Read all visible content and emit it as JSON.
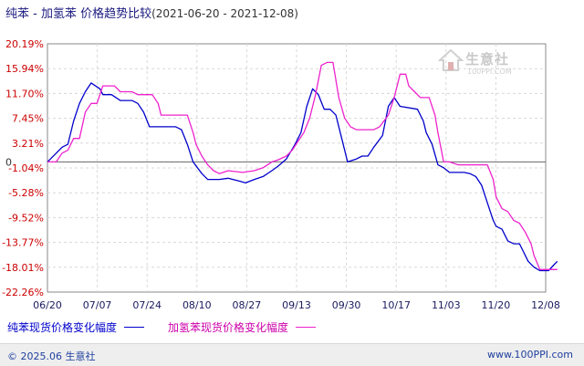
{
  "chart_data": {
    "type": "line",
    "title": "纯苯 - 加氢苯 价格趋势比较",
    "subtitle": "(2021-06-20 - 2021-12-08)",
    "x_ticks": [
      "06/20",
      "07/07",
      "07/24",
      "08/10",
      "08/27",
      "09/13",
      "09/30",
      "10/17",
      "11/03",
      "11/20",
      "12/08"
    ],
    "x_range": [
      "06/20",
      "12/08"
    ],
    "y_ticks": [
      "20.19%",
      "15.94%",
      "11.70%",
      "7.45%",
      "3.21%",
      "-1.04%",
      "-5.28%",
      "-9.52%",
      "-13.77%",
      "-18.01%",
      "-22.26%"
    ],
    "y_zero_label": "0",
    "ylim": [
      -22.26,
      20.19
    ],
    "grid": true,
    "legend_position": "bottom",
    "series": [
      {
        "name": "纯苯现货价格变化幅度",
        "color": "#0000cc",
        "points": [
          [
            0,
            0
          ],
          [
            3,
            1.5
          ],
          [
            5,
            2.5
          ],
          [
            7,
            3
          ],
          [
            9,
            7
          ],
          [
            11,
            10
          ],
          [
            13,
            12
          ],
          [
            15,
            13.5
          ],
          [
            18,
            12.5
          ],
          [
            19,
            11.5
          ],
          [
            22,
            11.5
          ],
          [
            25,
            10.5
          ],
          [
            29,
            10.5
          ],
          [
            31,
            10
          ],
          [
            33,
            8.5
          ],
          [
            35,
            6
          ],
          [
            44,
            6
          ],
          [
            46,
            5.5
          ],
          [
            48,
            3
          ],
          [
            50,
            0
          ],
          [
            53,
            -2
          ],
          [
            55,
            -3
          ],
          [
            59,
            -3
          ],
          [
            62,
            -2.8
          ],
          [
            66,
            -3.3
          ],
          [
            68,
            -3.6
          ],
          [
            71,
            -3
          ],
          [
            74,
            -2.5
          ],
          [
            77,
            -1.5
          ],
          [
            79,
            -0.8
          ],
          [
            82,
            0.5
          ],
          [
            85,
            3
          ],
          [
            87,
            5
          ],
          [
            89,
            9.5
          ],
          [
            91,
            12.5
          ],
          [
            93,
            11.5
          ],
          [
            95,
            9
          ],
          [
            97,
            9
          ],
          [
            99,
            8
          ],
          [
            101,
            4
          ],
          [
            103,
            0
          ],
          [
            106,
            0.5
          ],
          [
            108,
            1
          ],
          [
            110,
            1
          ],
          [
            112,
            2.5
          ],
          [
            115,
            4.5
          ],
          [
            117,
            9.5
          ],
          [
            119,
            11
          ],
          [
            121,
            9.5
          ],
          [
            127,
            9
          ],
          [
            129,
            7
          ],
          [
            130,
            5
          ],
          [
            132,
            3
          ],
          [
            134,
            -0.5
          ],
          [
            136,
            -1
          ],
          [
            138,
            -1.8
          ],
          [
            143,
            -1.8
          ],
          [
            145,
            -2
          ],
          [
            147,
            -2.5
          ],
          [
            149,
            -4
          ],
          [
            151,
            -7
          ],
          [
            153,
            -10
          ],
          [
            154,
            -11
          ],
          [
            156,
            -11.5
          ],
          [
            158,
            -13.5
          ],
          [
            160,
            -14
          ],
          [
            162,
            -14
          ],
          [
            163,
            -15
          ],
          [
            165,
            -17
          ],
          [
            167,
            -18
          ],
          [
            169,
            -18.6
          ],
          [
            172,
            -18.6
          ],
          [
            174,
            -17.5
          ],
          [
            175,
            -17
          ]
        ]
      },
      {
        "name": "加氢苯现货价格变化幅度",
        "color": "#ee22cc",
        "points": [
          [
            0,
            0
          ],
          [
            3,
            0
          ],
          [
            5,
            1.5
          ],
          [
            7,
            2
          ],
          [
            9,
            4
          ],
          [
            11,
            4
          ],
          [
            13,
            8.5
          ],
          [
            15,
            10
          ],
          [
            17,
            10
          ],
          [
            19,
            13
          ],
          [
            23,
            13
          ],
          [
            25,
            12
          ],
          [
            29,
            12
          ],
          [
            31,
            11.5
          ],
          [
            36,
            11.5
          ],
          [
            38,
            10
          ],
          [
            39,
            8
          ],
          [
            48,
            8
          ],
          [
            50,
            5
          ],
          [
            51,
            3
          ],
          [
            53,
            1
          ],
          [
            55,
            -0.5
          ],
          [
            57,
            -1.5
          ],
          [
            59,
            -2
          ],
          [
            62,
            -1.5
          ],
          [
            67,
            -1.8
          ],
          [
            71,
            -1.5
          ],
          [
            74,
            -1
          ],
          [
            77,
            0
          ],
          [
            79,
            0.3
          ],
          [
            82,
            1
          ],
          [
            84,
            2
          ],
          [
            86,
            3.5
          ],
          [
            88,
            5
          ],
          [
            90,
            7.5
          ],
          [
            92,
            11.5
          ],
          [
            94,
            16.5
          ],
          [
            96,
            17
          ],
          [
            98,
            17
          ],
          [
            99,
            14
          ],
          [
            100,
            11
          ],
          [
            102,
            7.5
          ],
          [
            104,
            6
          ],
          [
            106,
            5.5
          ],
          [
            112,
            5.5
          ],
          [
            114,
            6
          ],
          [
            117,
            8
          ],
          [
            119,
            11
          ],
          [
            121,
            15
          ],
          [
            123,
            15
          ],
          [
            124,
            13
          ],
          [
            126,
            12
          ],
          [
            128,
            11
          ],
          [
            131,
            11
          ],
          [
            133,
            8
          ],
          [
            134,
            5
          ],
          [
            136,
            0
          ],
          [
            138,
            0
          ],
          [
            141,
            -0.5
          ],
          [
            146,
            -0.5
          ],
          [
            149,
            -0.5
          ],
          [
            151,
            -0.5
          ],
          [
            153,
            -3
          ],
          [
            154,
            -6
          ],
          [
            156,
            -8
          ],
          [
            158,
            -8.5
          ],
          [
            160,
            -10
          ],
          [
            162,
            -10.5
          ],
          [
            164,
            -12
          ],
          [
            166,
            -14
          ],
          [
            167,
            -16
          ],
          [
            169,
            -18.4
          ],
          [
            175,
            -18.4
          ]
        ]
      }
    ]
  },
  "watermark": {
    "text": "生意社",
    "sub": "100PPI.COM"
  },
  "footer": {
    "left": "© 2025.06 生意社",
    "right": "www.100PPI.com"
  }
}
